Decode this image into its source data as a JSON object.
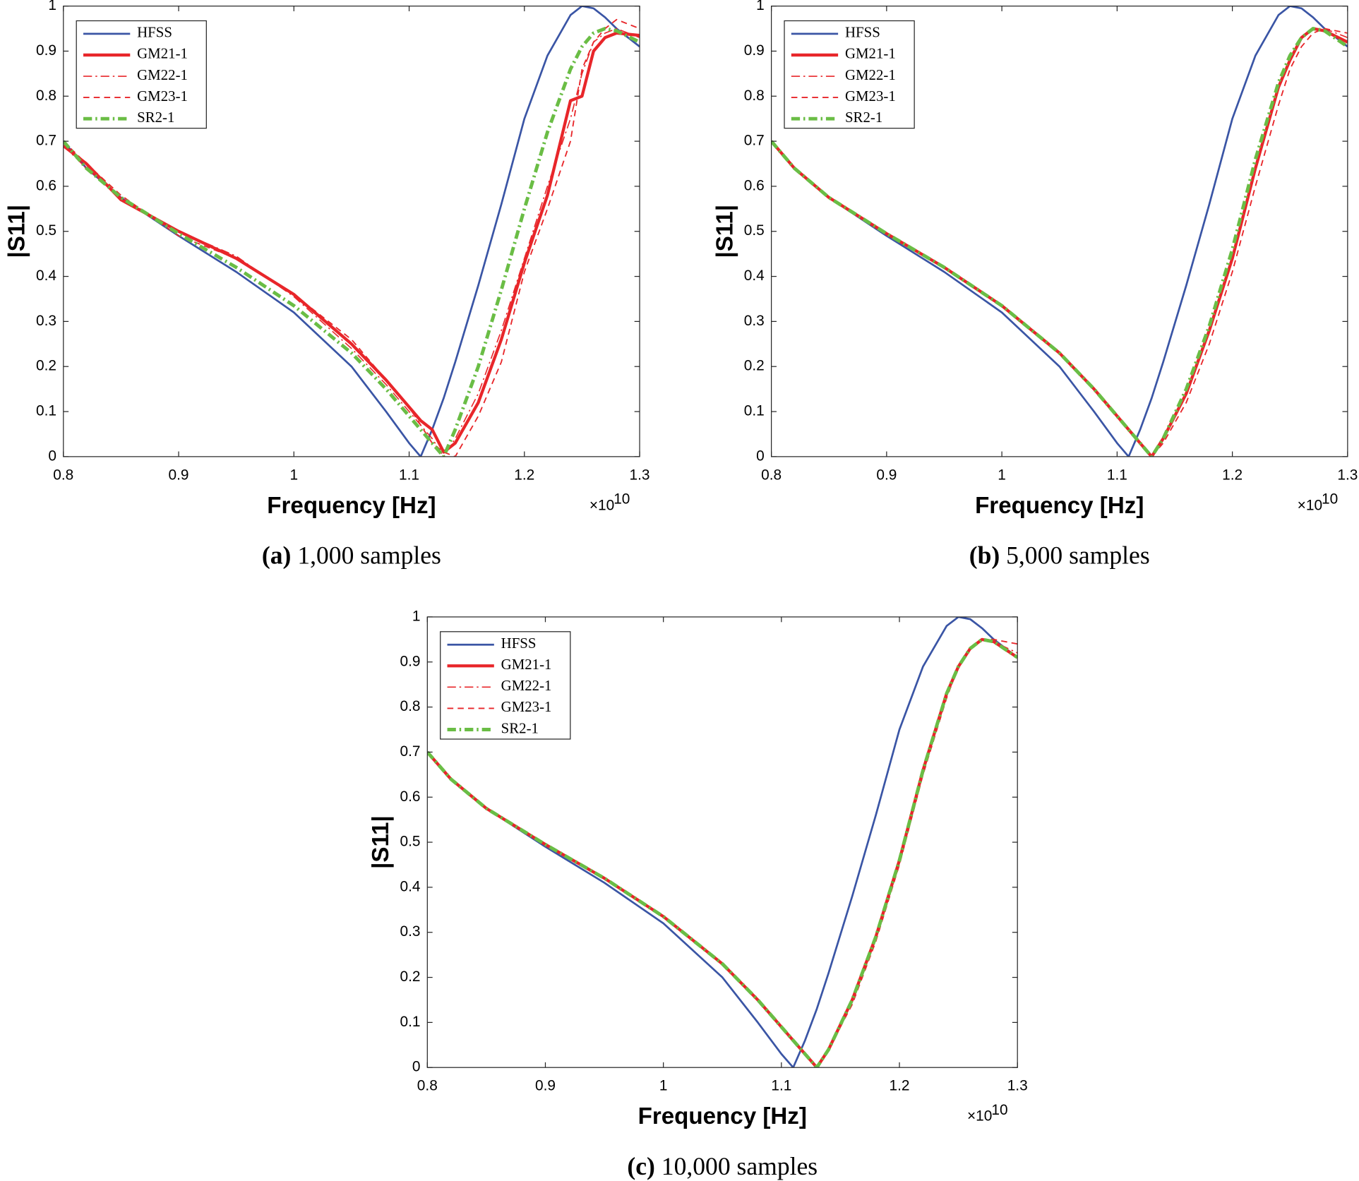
{
  "chart_data": [
    {
      "type": "line",
      "caption_label": "(a)",
      "caption_text": "1,000 samples",
      "xlabel": "Frequency [Hz]",
      "ylabel": "|S11|",
      "x_multiplier": "×10",
      "x_multiplier_exponent": "10",
      "xlim": [
        0.8,
        1.3
      ],
      "ylim": [
        0,
        1
      ],
      "xticks": [
        0.8,
        0.9,
        1,
        1.1,
        1.2,
        1.3
      ],
      "yticks": [
        0,
        0.1,
        0.2,
        0.3,
        0.4,
        0.5,
        0.6,
        0.7,
        0.8,
        0.9,
        1
      ],
      "legend": "upper left",
      "x": [
        0.8,
        0.82,
        0.85,
        0.9,
        0.95,
        1.0,
        1.05,
        1.08,
        1.1,
        1.11,
        1.12,
        1.13,
        1.14,
        1.16,
        1.18,
        1.2,
        1.22,
        1.24,
        1.25,
        1.26,
        1.27,
        1.28,
        1.3
      ],
      "series": [
        {
          "name": "HFSS",
          "color": "#3a55a5",
          "style": "solid",
          "linewidth": 2.2,
          "values": [
            0.7,
            0.64,
            0.575,
            0.49,
            0.41,
            0.32,
            0.2,
            0.1,
            0.03,
            0.0,
            0.06,
            0.13,
            0.21,
            0.38,
            0.56,
            0.75,
            0.89,
            0.98,
            1.0,
            0.995,
            0.975,
            0.95,
            0.91
          ]
        },
        {
          "name": "GM21-1",
          "color": "#e8262a",
          "style": "solid",
          "linewidth": 3.5,
          "values": [
            0.69,
            0.65,
            0.57,
            0.5,
            0.44,
            0.36,
            0.25,
            0.17,
            0.11,
            0.08,
            0.06,
            0.01,
            0.03,
            0.12,
            0.26,
            0.43,
            0.58,
            0.79,
            0.8,
            0.9,
            0.93,
            0.94,
            0.935
          ]
        },
        {
          "name": "GM22-1",
          "color": "#e8262a",
          "style": "dashdot",
          "linewidth": 1.3,
          "values": [
            0.69,
            0.64,
            0.575,
            0.5,
            0.445,
            0.355,
            0.24,
            0.16,
            0.1,
            0.07,
            0.04,
            0.0,
            0.04,
            0.14,
            0.28,
            0.44,
            0.6,
            0.75,
            0.85,
            0.92,
            0.94,
            0.95,
            0.93
          ]
        },
        {
          "name": "GM23-1",
          "color": "#e8262a",
          "style": "dashed",
          "linewidth": 1.5,
          "values": [
            0.7,
            0.65,
            0.58,
            0.49,
            0.44,
            0.36,
            0.26,
            0.17,
            0.11,
            0.07,
            0.03,
            0.01,
            0.0,
            0.09,
            0.21,
            0.41,
            0.55,
            0.7,
            0.86,
            0.92,
            0.95,
            0.97,
            0.95
          ]
        },
        {
          "name": "SR2-1",
          "color": "#6abd45",
          "style": "dashdot",
          "linewidth": 4,
          "values": [
            0.7,
            0.64,
            0.575,
            0.495,
            0.42,
            0.335,
            0.23,
            0.15,
            0.09,
            0.06,
            0.03,
            0.0,
            0.06,
            0.2,
            0.37,
            0.55,
            0.72,
            0.86,
            0.91,
            0.94,
            0.95,
            0.945,
            0.92
          ]
        }
      ]
    },
    {
      "type": "line",
      "caption_label": "(b)",
      "caption_text": "5,000 samples",
      "xlabel": "Frequency [Hz]",
      "ylabel": "|S11|",
      "x_multiplier": "×10",
      "x_multiplier_exponent": "10",
      "xlim": [
        0.8,
        1.3
      ],
      "ylim": [
        0,
        1
      ],
      "xticks": [
        0.8,
        0.9,
        1,
        1.1,
        1.2,
        1.3
      ],
      "yticks": [
        0,
        0.1,
        0.2,
        0.3,
        0.4,
        0.5,
        0.6,
        0.7,
        0.8,
        0.9,
        1
      ],
      "legend": "upper left",
      "x": [
        0.8,
        0.82,
        0.85,
        0.9,
        0.95,
        1.0,
        1.05,
        1.08,
        1.1,
        1.11,
        1.12,
        1.13,
        1.14,
        1.16,
        1.18,
        1.2,
        1.22,
        1.24,
        1.25,
        1.26,
        1.27,
        1.28,
        1.3
      ],
      "series": [
        {
          "name": "HFSS",
          "color": "#3a55a5",
          "style": "solid",
          "linewidth": 2.2,
          "values": [
            0.7,
            0.64,
            0.575,
            0.49,
            0.41,
            0.32,
            0.2,
            0.1,
            0.03,
            0.0,
            0.06,
            0.13,
            0.21,
            0.38,
            0.56,
            0.75,
            0.89,
            0.98,
            1.0,
            0.995,
            0.975,
            0.95,
            0.91
          ]
        },
        {
          "name": "GM21-1",
          "color": "#e8262a",
          "style": "solid",
          "linewidth": 3.5,
          "values": [
            0.7,
            0.64,
            0.575,
            0.495,
            0.42,
            0.335,
            0.23,
            0.15,
            0.09,
            0.06,
            0.03,
            0.0,
            0.04,
            0.14,
            0.28,
            0.44,
            0.64,
            0.82,
            0.88,
            0.93,
            0.95,
            0.945,
            0.92
          ]
        },
        {
          "name": "GM22-1",
          "color": "#e8262a",
          "style": "dashdot",
          "linewidth": 1.3,
          "values": [
            0.7,
            0.64,
            0.575,
            0.495,
            0.42,
            0.335,
            0.23,
            0.15,
            0.09,
            0.06,
            0.03,
            0.0,
            0.04,
            0.15,
            0.29,
            0.45,
            0.65,
            0.82,
            0.89,
            0.93,
            0.95,
            0.95,
            0.93
          ]
        },
        {
          "name": "GM23-1",
          "color": "#e8262a",
          "style": "dashed",
          "linewidth": 1.5,
          "values": [
            0.7,
            0.64,
            0.575,
            0.495,
            0.42,
            0.335,
            0.23,
            0.15,
            0.09,
            0.06,
            0.03,
            0.0,
            0.03,
            0.12,
            0.25,
            0.41,
            0.6,
            0.78,
            0.86,
            0.91,
            0.94,
            0.95,
            0.94
          ]
        },
        {
          "name": "SR2-1",
          "color": "#6abd45",
          "style": "dashdot",
          "linewidth": 4,
          "values": [
            0.7,
            0.64,
            0.575,
            0.495,
            0.42,
            0.335,
            0.23,
            0.15,
            0.09,
            0.06,
            0.03,
            0.0,
            0.04,
            0.15,
            0.29,
            0.46,
            0.66,
            0.83,
            0.89,
            0.93,
            0.95,
            0.945,
            0.91
          ]
        }
      ]
    },
    {
      "type": "line",
      "caption_label": "(c)",
      "caption_text": "10,000 samples",
      "xlabel": "Frequency [Hz]",
      "ylabel": "|S11|",
      "x_multiplier": "×10",
      "x_multiplier_exponent": "10",
      "xlim": [
        0.8,
        1.3
      ],
      "ylim": [
        0,
        1
      ],
      "xticks": [
        0.8,
        0.9,
        1,
        1.1,
        1.2,
        1.3
      ],
      "yticks": [
        0,
        0.1,
        0.2,
        0.3,
        0.4,
        0.5,
        0.6,
        0.7,
        0.8,
        0.9,
        1
      ],
      "legend": "upper left",
      "x": [
        0.8,
        0.82,
        0.85,
        0.9,
        0.95,
        1.0,
        1.05,
        1.08,
        1.1,
        1.11,
        1.12,
        1.13,
        1.14,
        1.16,
        1.18,
        1.2,
        1.22,
        1.24,
        1.25,
        1.26,
        1.27,
        1.28,
        1.3
      ],
      "series": [
        {
          "name": "HFSS",
          "color": "#3a55a5",
          "style": "solid",
          "linewidth": 2.2,
          "values": [
            0.7,
            0.64,
            0.575,
            0.49,
            0.41,
            0.32,
            0.2,
            0.1,
            0.03,
            0.0,
            0.06,
            0.13,
            0.21,
            0.38,
            0.56,
            0.75,
            0.89,
            0.98,
            1.0,
            0.995,
            0.975,
            0.95,
            0.91
          ]
        },
        {
          "name": "GM21-1",
          "color": "#e8262a",
          "style": "solid",
          "linewidth": 3.5,
          "values": [
            0.7,
            0.64,
            0.575,
            0.495,
            0.42,
            0.335,
            0.23,
            0.15,
            0.09,
            0.06,
            0.03,
            0.0,
            0.04,
            0.15,
            0.29,
            0.46,
            0.66,
            0.83,
            0.89,
            0.93,
            0.95,
            0.945,
            0.91
          ]
        },
        {
          "name": "GM22-1",
          "color": "#e8262a",
          "style": "dashdot",
          "linewidth": 1.3,
          "values": [
            0.7,
            0.64,
            0.575,
            0.495,
            0.42,
            0.335,
            0.23,
            0.15,
            0.09,
            0.06,
            0.03,
            0.0,
            0.04,
            0.15,
            0.29,
            0.45,
            0.65,
            0.83,
            0.89,
            0.93,
            0.95,
            0.945,
            0.92
          ]
        },
        {
          "name": "GM23-1",
          "color": "#e8262a",
          "style": "dashed",
          "linewidth": 1.5,
          "values": [
            0.7,
            0.64,
            0.575,
            0.495,
            0.42,
            0.335,
            0.23,
            0.15,
            0.09,
            0.06,
            0.03,
            0.0,
            0.04,
            0.14,
            0.28,
            0.45,
            0.65,
            0.82,
            0.89,
            0.93,
            0.95,
            0.95,
            0.94
          ]
        },
        {
          "name": "SR2-1",
          "color": "#6abd45",
          "style": "dashdot",
          "linewidth": 4,
          "values": [
            0.7,
            0.64,
            0.575,
            0.495,
            0.42,
            0.335,
            0.23,
            0.15,
            0.09,
            0.06,
            0.03,
            0.0,
            0.04,
            0.15,
            0.29,
            0.46,
            0.66,
            0.83,
            0.89,
            0.93,
            0.95,
            0.945,
            0.91
          ]
        }
      ]
    }
  ]
}
